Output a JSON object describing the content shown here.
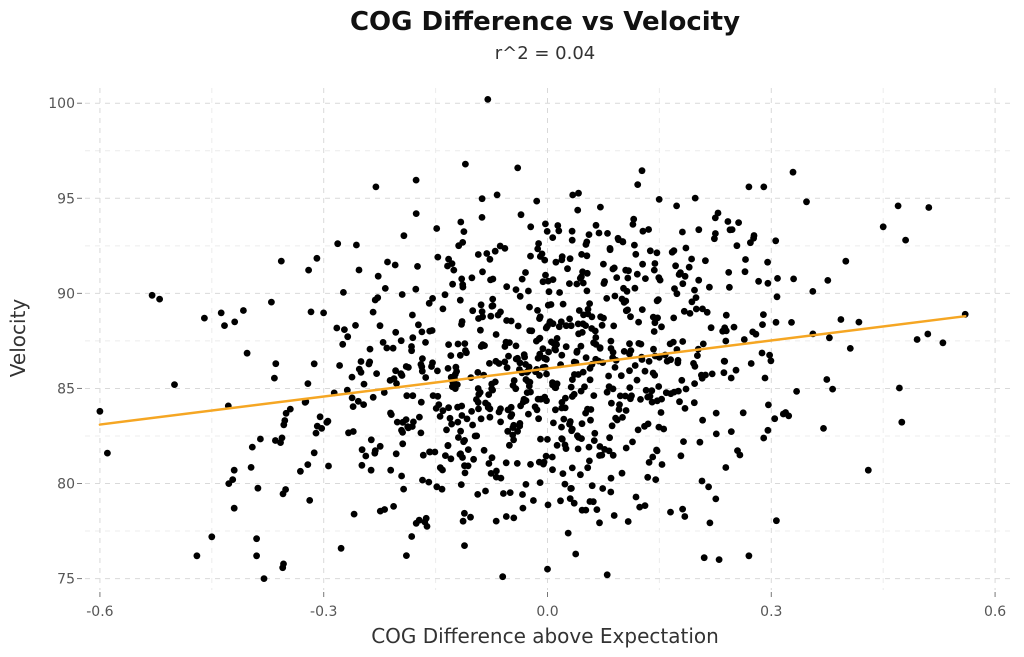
{
  "chart_data": {
    "type": "scatter",
    "title": "COG Difference vs Velocity",
    "subtitle": "r^2 = 0.04",
    "xlabel": "COG Difference above Expectation",
    "ylabel": "Velocity",
    "xlim": [
      -0.62,
      0.62
    ],
    "ylim": [
      74.4,
      100.8
    ],
    "xticks": [
      -0.6,
      -0.3,
      0.0,
      0.3,
      0.6
    ],
    "xtick_labels": [
      "-0.6",
      "-0.3",
      "0.0",
      "0.3",
      "0.6"
    ],
    "yticks": [
      75,
      80,
      85,
      90,
      95,
      100
    ],
    "ytick_labels": [
      "75",
      "80",
      "85",
      "90",
      "95",
      "100"
    ],
    "grid": true,
    "legend": "none",
    "point_color": "#000000",
    "fit_color": "#F5A623",
    "fit_line": {
      "x": [
        -0.6,
        0.56
      ],
      "y": [
        83.1,
        88.8
      ]
    },
    "n_points": 900,
    "seed": 12345,
    "x_mean": 0.0,
    "x_sd": 0.17,
    "y_mean": 86.0,
    "y_sd": 4.5,
    "slope": 4.9,
    "highlight_points": [
      {
        "x": -0.6,
        "y": 83.8
      },
      {
        "x": -0.59,
        "y": 81.6
      },
      {
        "x": -0.53,
        "y": 89.9
      },
      {
        "x": -0.52,
        "y": 89.7
      },
      {
        "x": -0.5,
        "y": 85.2
      },
      {
        "x": -0.47,
        "y": 76.2
      },
      {
        "x": -0.46,
        "y": 88.7
      },
      {
        "x": -0.45,
        "y": 77.2
      },
      {
        "x": -0.42,
        "y": 80.7
      },
      {
        "x": -0.42,
        "y": 78.7
      },
      {
        "x": -0.39,
        "y": 77.1
      },
      {
        "x": -0.39,
        "y": 76.2
      },
      {
        "x": -0.38,
        "y": 75.0
      },
      {
        "x": -0.08,
        "y": 100.2
      },
      {
        "x": -0.11,
        "y": 96.8
      },
      {
        "x": -0.04,
        "y": 96.6
      },
      {
        "x": -0.23,
        "y": 95.6
      },
      {
        "x": 0.27,
        "y": 95.6
      },
      {
        "x": 0.29,
        "y": 95.6
      },
      {
        "x": 0.47,
        "y": 94.6
      },
      {
        "x": 0.45,
        "y": 93.5
      },
      {
        "x": 0.48,
        "y": 92.8
      },
      {
        "x": 0.56,
        "y": 88.9
      },
      {
        "x": 0.53,
        "y": 87.4
      },
      {
        "x": 0.43,
        "y": 80.7
      },
      {
        "x": 0.37,
        "y": 82.9
      },
      {
        "x": -0.06,
        "y": 75.1
      },
      {
        "x": 0.0,
        "y": 75.5
      },
      {
        "x": 0.08,
        "y": 75.2
      },
      {
        "x": 0.27,
        "y": 76.2
      },
      {
        "x": 0.21,
        "y": 76.1
      },
      {
        "x": 0.23,
        "y": 76.0
      }
    ]
  }
}
